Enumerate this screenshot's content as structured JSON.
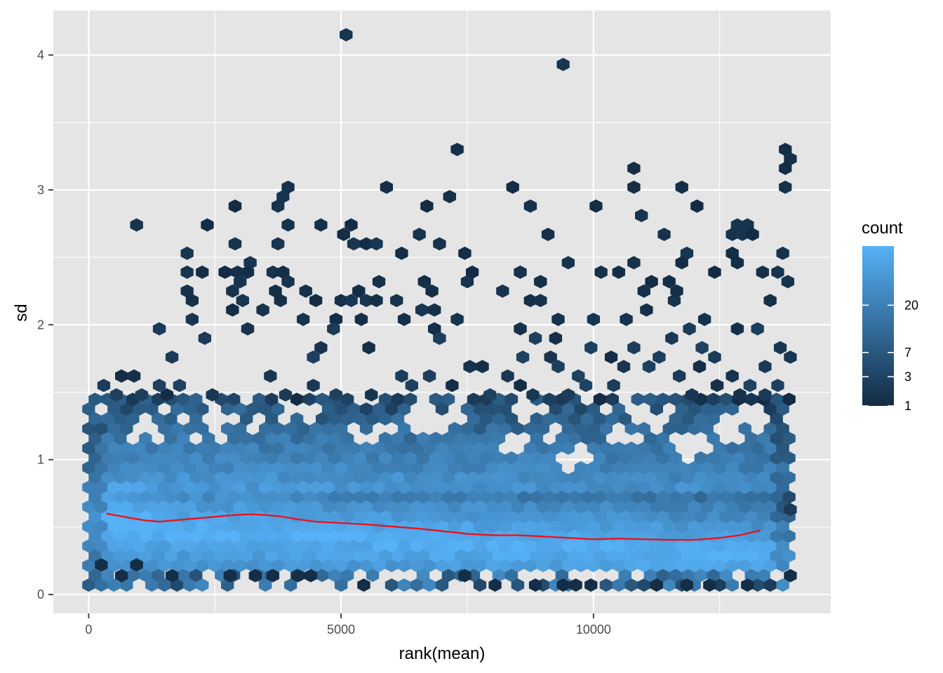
{
  "chart_data": {
    "type": "heatmap",
    "subtype": "hexbin",
    "xlabel": "rank(mean)",
    "ylabel": "sd",
    "xlim": [
      -700,
      14700
    ],
    "ylim": [
      -0.14,
      4.33
    ],
    "x_ticks": [
      {
        "value": 0,
        "label": "0"
      },
      {
        "value": 5000,
        "label": "5000"
      },
      {
        "value": 10000,
        "label": "10000"
      }
    ],
    "y_ticks": [
      {
        "value": 0,
        "label": "0"
      },
      {
        "value": 1,
        "label": "1"
      },
      {
        "value": 2,
        "label": "2"
      },
      {
        "value": 3,
        "label": "3"
      },
      {
        "value": 4,
        "label": "4"
      }
    ],
    "grid": true,
    "panel_background": "#e5e5e5",
    "grid_color": "#ffffff",
    "hexbin": {
      "x_start": 0,
      "x_end": 13900,
      "x_spacing": 250,
      "y_start": 0.07,
      "y_spacing": 0.0725,
      "dense_top_sd": 1.45,
      "count_colors": [
        "#132b43",
        "#56b1f7"
      ]
    },
    "sparse_points": [
      [
        5100,
        4.15
      ],
      [
        9400,
        3.93
      ],
      [
        7300,
        3.3
      ],
      [
        13800,
        3.3
      ],
      [
        13900,
        3.23
      ],
      [
        13800,
        3.16
      ],
      [
        10800,
        3.16
      ],
      [
        3950,
        3.02
      ],
      [
        5900,
        3.02
      ],
      [
        8400,
        3.02
      ],
      [
        10800,
        3.02
      ],
      [
        11750,
        3.02
      ],
      [
        13800,
        3.02
      ],
      [
        3850,
        2.95
      ],
      [
        7150,
        2.95
      ],
      [
        2900,
        2.88
      ],
      [
        3750,
        2.88
      ],
      [
        6700,
        2.88
      ],
      [
        8750,
        2.88
      ],
      [
        10050,
        2.88
      ],
      [
        12050,
        2.88
      ],
      [
        10950,
        2.81
      ],
      [
        950,
        2.74
      ],
      [
        2350,
        2.74
      ],
      [
        3950,
        2.74
      ],
      [
        4600,
        2.74
      ],
      [
        5200,
        2.74
      ],
      [
        12850,
        2.74
      ],
      [
        13050,
        2.74
      ],
      [
        5050,
        2.67
      ],
      [
        6550,
        2.67
      ],
      [
        9100,
        2.67
      ],
      [
        11400,
        2.67
      ],
      [
        12750,
        2.67
      ],
      [
        12950,
        2.67
      ],
      [
        13150,
        2.67
      ],
      [
        2900,
        2.6
      ],
      [
        3750,
        2.6
      ],
      [
        5250,
        2.6
      ],
      [
        5500,
        2.6
      ],
      [
        5700,
        2.6
      ],
      [
        6950,
        2.6
      ],
      [
        1950,
        2.53
      ],
      [
        6200,
        2.53
      ],
      [
        7450,
        2.53
      ],
      [
        11850,
        2.53
      ],
      [
        12750,
        2.53
      ],
      [
        13750,
        2.53
      ],
      [
        3200,
        2.46
      ],
      [
        9500,
        2.46
      ],
      [
        10800,
        2.46
      ],
      [
        11750,
        2.46
      ],
      [
        12850,
        2.46
      ],
      [
        1950,
        2.39
      ],
      [
        2250,
        2.39
      ],
      [
        2700,
        2.39
      ],
      [
        2950,
        2.39
      ],
      [
        3150,
        2.39
      ],
      [
        3650,
        2.39
      ],
      [
        3850,
        2.39
      ],
      [
        7600,
        2.39
      ],
      [
        8550,
        2.39
      ],
      [
        10150,
        2.39
      ],
      [
        10500,
        2.39
      ],
      [
        12400,
        2.39
      ],
      [
        13350,
        2.39
      ],
      [
        13650,
        2.39
      ],
      [
        3000,
        2.32
      ],
      [
        3950,
        2.32
      ],
      [
        5750,
        2.32
      ],
      [
        6650,
        2.32
      ],
      [
        7500,
        2.32
      ],
      [
        8950,
        2.32
      ],
      [
        11150,
        2.32
      ],
      [
        11500,
        2.32
      ],
      [
        13850,
        2.32
      ],
      [
        1950,
        2.25
      ],
      [
        2850,
        2.25
      ],
      [
        3700,
        2.25
      ],
      [
        4300,
        2.25
      ],
      [
        5350,
        2.25
      ],
      [
        6800,
        2.25
      ],
      [
        8200,
        2.25
      ],
      [
        11000,
        2.25
      ],
      [
        11650,
        2.25
      ],
      [
        2050,
        2.18
      ],
      [
        3050,
        2.18
      ],
      [
        3800,
        2.18
      ],
      [
        4500,
        2.18
      ],
      [
        5000,
        2.18
      ],
      [
        5200,
        2.18
      ],
      [
        5500,
        2.18
      ],
      [
        5700,
        2.18
      ],
      [
        6100,
        2.18
      ],
      [
        8750,
        2.18
      ],
      [
        8950,
        2.18
      ],
      [
        11600,
        2.18
      ],
      [
        13500,
        2.18
      ],
      [
        2850,
        2.11
      ],
      [
        3450,
        2.11
      ],
      [
        6600,
        2.11
      ],
      [
        6850,
        2.11
      ],
      [
        11050,
        2.11
      ],
      [
        2050,
        2.04
      ],
      [
        4250,
        2.04
      ],
      [
        4900,
        2.04
      ],
      [
        5400,
        2.04
      ],
      [
        6250,
        2.04
      ],
      [
        7300,
        2.04
      ],
      [
        9300,
        2.04
      ],
      [
        10000,
        2.04
      ],
      [
        10650,
        2.04
      ],
      [
        12200,
        2.04
      ],
      [
        1400,
        1.97
      ],
      [
        3150,
        1.97
      ],
      [
        4850,
        1.97
      ],
      [
        6850,
        1.97
      ],
      [
        8550,
        1.97
      ],
      [
        11900,
        1.97
      ],
      [
        12850,
        1.97
      ],
      [
        13250,
        1.97
      ],
      [
        2300,
        1.9
      ],
      [
        6950,
        1.9
      ],
      [
        8850,
        1.9
      ],
      [
        9250,
        1.9
      ],
      [
        11550,
        1.9
      ],
      [
        4600,
        1.83
      ],
      [
        5550,
        1.83
      ],
      [
        9950,
        1.83
      ],
      [
        10800,
        1.83
      ],
      [
        12150,
        1.83
      ],
      [
        13700,
        1.83
      ],
      [
        1650,
        1.76
      ],
      [
        4450,
        1.76
      ],
      [
        8600,
        1.76
      ],
      [
        9150,
        1.76
      ],
      [
        10350,
        1.76
      ],
      [
        11300,
        1.76
      ],
      [
        12400,
        1.76
      ],
      [
        13900,
        1.76
      ],
      [
        7550,
        1.69
      ],
      [
        7800,
        1.69
      ],
      [
        9300,
        1.69
      ],
      [
        10600,
        1.69
      ],
      [
        11100,
        1.69
      ],
      [
        12100,
        1.69
      ],
      [
        13400,
        1.69
      ],
      [
        650,
        1.62
      ],
      [
        900,
        1.62
      ],
      [
        3600,
        1.62
      ],
      [
        6200,
        1.62
      ],
      [
        6750,
        1.62
      ],
      [
        8300,
        1.62
      ],
      [
        9700,
        1.62
      ],
      [
        11700,
        1.62
      ],
      [
        12750,
        1.62
      ],
      [
        300,
        1.55
      ],
      [
        1400,
        1.55
      ],
      [
        1800,
        1.55
      ],
      [
        4450,
        1.55
      ],
      [
        6400,
        1.55
      ],
      [
        7200,
        1.55
      ],
      [
        8550,
        1.55
      ],
      [
        9850,
        1.55
      ],
      [
        10400,
        1.55
      ],
      [
        12450,
        1.55
      ],
      [
        13100,
        1.55
      ],
      [
        13650,
        1.55
      ],
      [
        550,
        1.48
      ],
      [
        1050,
        1.48
      ],
      [
        1550,
        1.48
      ],
      [
        2450,
        1.48
      ],
      [
        3900,
        1.48
      ],
      [
        4900,
        1.48
      ],
      [
        5600,
        1.48
      ],
      [
        7950,
        1.48
      ],
      [
        8800,
        1.48
      ],
      [
        9500,
        1.48
      ],
      [
        11950,
        1.48
      ],
      [
        12900,
        1.48
      ],
      [
        13400,
        1.48
      ],
      [
        13900,
        0.63
      ]
    ],
    "dense_holes": [
      [
        1150,
        1.27
      ],
      [
        2450,
        1.27
      ],
      [
        4350,
        1.34
      ],
      [
        6850,
        1.27
      ],
      [
        8350,
        1.13
      ],
      [
        9750,
        1.06
      ],
      [
        10550,
        1.2
      ],
      [
        11200,
        1.27
      ],
      [
        11900,
        1.06
      ],
      [
        12700,
        1.2
      ],
      [
        13300,
        1.27
      ],
      [
        9450,
        0.99
      ],
      [
        6450,
        1.27
      ],
      [
        8650,
        1.34
      ],
      [
        10900,
        1.34
      ],
      [
        12150,
        1.13
      ]
    ],
    "bottom_points": [
      [
        250,
        0.22
      ],
      [
        950,
        0.22
      ],
      [
        650,
        0.14
      ],
      [
        1650,
        0.14
      ],
      [
        2800,
        0.14
      ],
      [
        3300,
        0.14
      ],
      [
        3650,
        0.14
      ],
      [
        4150,
        0.14
      ],
      [
        4400,
        0.14
      ],
      [
        5450,
        0.07
      ],
      [
        7450,
        0.14
      ],
      [
        8050,
        0.07
      ],
      [
        8850,
        0.07
      ],
      [
        9400,
        0.07
      ],
      [
        9650,
        0.07
      ],
      [
        9950,
        0.07
      ],
      [
        11250,
        0.07
      ],
      [
        11850,
        0.07
      ],
      [
        12300,
        0.07
      ],
      [
        13050,
        0.07
      ],
      [
        13900,
        0.14
      ]
    ],
    "smooth_line": {
      "color": "#e8141e",
      "x": [
        350,
        800,
        1100,
        1400,
        1700,
        2000,
        2300,
        2600,
        2900,
        3200,
        3500,
        3800,
        4100,
        4500,
        5000,
        5500,
        6000,
        6500,
        7000,
        7500,
        8000,
        8500,
        9000,
        9500,
        10000,
        10500,
        11000,
        11500,
        12000,
        12500,
        12900,
        13300
      ],
      "y": [
        0.6,
        0.57,
        0.55,
        0.54,
        0.55,
        0.56,
        0.57,
        0.58,
        0.59,
        0.595,
        0.59,
        0.58,
        0.56,
        0.54,
        0.53,
        0.52,
        0.505,
        0.49,
        0.47,
        0.45,
        0.44,
        0.44,
        0.43,
        0.42,
        0.41,
        0.415,
        0.41,
        0.405,
        0.405,
        0.42,
        0.44,
        0.475
      ]
    },
    "legend": {
      "title": "count",
      "position": "right",
      "labels": [
        {
          "value": 1,
          "label": "1"
        },
        {
          "value": 3,
          "label": "3"
        },
        {
          "value": 7,
          "label": "7"
        },
        {
          "value": 20,
          "label": "20"
        }
      ],
      "max_count": 45,
      "low_color": "#132b43",
      "high_color": "#56b1f7"
    }
  }
}
